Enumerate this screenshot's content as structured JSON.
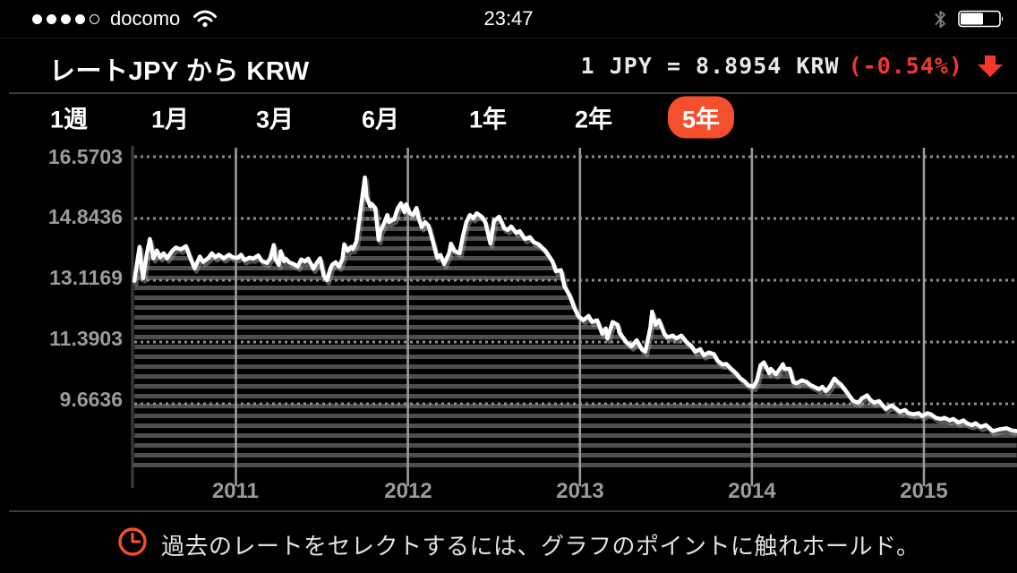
{
  "status_bar": {
    "carrier": "docomo",
    "time": "23:47",
    "signal_dots_filled": 4,
    "signal_dots_total": 5,
    "battery_percent_visual": 57
  },
  "header": {
    "title": "レートJPY から KRW",
    "rate_main": "1 JPY = 8.8954 KRW",
    "rate_change": "(-0.54%)",
    "direction": "down"
  },
  "tabs": {
    "items": [
      {
        "label": "1週",
        "selected": false
      },
      {
        "label": "1月",
        "selected": false
      },
      {
        "label": "3月",
        "selected": false
      },
      {
        "label": "6月",
        "selected": false
      },
      {
        "label": "1年",
        "selected": false
      },
      {
        "label": "2年",
        "selected": false
      },
      {
        "label": "5年",
        "selected": true
      }
    ]
  },
  "chart_data": {
    "type": "line",
    "title": "JPY to KRW exchange rate, 5 year history",
    "current_rate": 8.8954,
    "change_percent": -0.54,
    "x_tick_labels": [
      "2011",
      "2012",
      "2013",
      "2014",
      "2015"
    ],
    "x_tick_years": [
      2011,
      2012,
      2013,
      2014,
      2015
    ],
    "y_tick_labels": [
      "16.5703",
      "14.8436",
      "13.1169",
      "11.3903",
      "9.6636"
    ],
    "y_tick_values": [
      16.5703,
      14.8436,
      13.1169,
      11.3903,
      9.6636
    ],
    "x_range": [
      2010.41,
      2015.54
    ],
    "grid": "horizontal dotted at y ticks, vertical solid at years",
    "series": [
      {
        "name": "JPY/KRW",
        "points": [
          [
            2010.41,
            13.1
          ],
          [
            2010.43,
            13.75
          ],
          [
            2010.44,
            14.05
          ],
          [
            2010.45,
            13.55
          ],
          [
            2010.46,
            13.18
          ],
          [
            2010.48,
            13.8
          ],
          [
            2010.5,
            14.27
          ],
          [
            2010.52,
            13.73
          ],
          [
            2010.54,
            13.95
          ],
          [
            2010.56,
            13.76
          ],
          [
            2010.58,
            13.87
          ],
          [
            2010.6,
            13.73
          ],
          [
            2010.63,
            13.94
          ],
          [
            2010.65,
            14.03
          ],
          [
            2010.68,
            13.98
          ],
          [
            2010.71,
            14.07
          ],
          [
            2010.73,
            13.8
          ],
          [
            2010.75,
            13.56
          ],
          [
            2010.76,
            13.45
          ],
          [
            2010.79,
            13.78
          ],
          [
            2010.81,
            13.63
          ],
          [
            2010.84,
            13.74
          ],
          [
            2010.86,
            13.87
          ],
          [
            2010.88,
            13.76
          ],
          [
            2010.9,
            13.83
          ],
          [
            2010.93,
            13.73
          ],
          [
            2010.96,
            13.83
          ],
          [
            2010.98,
            13.76
          ],
          [
            2011.01,
            13.74
          ],
          [
            2011.03,
            13.83
          ],
          [
            2011.05,
            13.68
          ],
          [
            2011.08,
            13.75
          ],
          [
            2011.1,
            13.72
          ],
          [
            2011.13,
            13.81
          ],
          [
            2011.15,
            13.66
          ],
          [
            2011.18,
            13.6
          ],
          [
            2011.2,
            13.73
          ],
          [
            2011.22,
            14.1
          ],
          [
            2011.23,
            13.7
          ],
          [
            2011.25,
            13.55
          ],
          [
            2011.26,
            13.93
          ],
          [
            2011.28,
            13.65
          ],
          [
            2011.29,
            13.72
          ],
          [
            2011.31,
            13.62
          ],
          [
            2011.34,
            13.56
          ],
          [
            2011.36,
            13.5
          ],
          [
            2011.38,
            13.7
          ],
          [
            2011.4,
            13.64
          ],
          [
            2011.42,
            13.72
          ],
          [
            2011.45,
            13.44
          ],
          [
            2011.47,
            13.6
          ],
          [
            2011.49,
            13.73
          ],
          [
            2011.51,
            13.25
          ],
          [
            2011.53,
            13.12
          ],
          [
            2011.55,
            13.45
          ],
          [
            2011.56,
            13.55
          ],
          [
            2011.58,
            13.62
          ],
          [
            2011.6,
            13.5
          ],
          [
            2011.62,
            13.72
          ],
          [
            2011.63,
            14.12
          ],
          [
            2011.65,
            13.94
          ],
          [
            2011.67,
            14.05
          ],
          [
            2011.68,
            13.99
          ],
          [
            2011.7,
            14.19
          ],
          [
            2011.72,
            14.9
          ],
          [
            2011.75,
            15.99
          ],
          [
            2011.76,
            15.45
          ],
          [
            2011.78,
            15.19
          ],
          [
            2011.79,
            15.25
          ],
          [
            2011.81,
            15.14
          ],
          [
            2011.83,
            14.24
          ],
          [
            2011.84,
            14.5
          ],
          [
            2011.86,
            14.69
          ],
          [
            2011.88,
            14.94
          ],
          [
            2011.89,
            14.74
          ],
          [
            2011.91,
            14.8
          ],
          [
            2011.92,
            14.82
          ],
          [
            2011.94,
            15.12
          ],
          [
            2011.96,
            15.27
          ],
          [
            2011.98,
            15.02
          ],
          [
            2011.99,
            15.24
          ],
          [
            2012.01,
            15.0
          ],
          [
            2012.03,
            14.94
          ],
          [
            2012.05,
            15.14
          ],
          [
            2012.06,
            14.89
          ],
          [
            2012.08,
            14.6
          ],
          [
            2012.1,
            14.74
          ],
          [
            2012.12,
            14.64
          ],
          [
            2012.15,
            14.12
          ],
          [
            2012.17,
            13.75
          ],
          [
            2012.19,
            13.82
          ],
          [
            2012.21,
            13.57
          ],
          [
            2012.24,
            13.87
          ],
          [
            2012.25,
            14.14
          ],
          [
            2012.27,
            13.94
          ],
          [
            2012.3,
            13.87
          ],
          [
            2012.32,
            14.35
          ],
          [
            2012.34,
            14.74
          ],
          [
            2012.36,
            14.94
          ],
          [
            2012.38,
            14.85
          ],
          [
            2012.4,
            14.99
          ],
          [
            2012.43,
            14.89
          ],
          [
            2012.45,
            14.74
          ],
          [
            2012.48,
            14.14
          ],
          [
            2012.5,
            14.77
          ],
          [
            2012.53,
            14.89
          ],
          [
            2012.56,
            14.57
          ],
          [
            2012.58,
            14.52
          ],
          [
            2012.6,
            14.62
          ],
          [
            2012.63,
            14.44
          ],
          [
            2012.65,
            14.49
          ],
          [
            2012.68,
            14.27
          ],
          [
            2012.71,
            14.32
          ],
          [
            2012.73,
            14.19
          ],
          [
            2012.76,
            14.12
          ],
          [
            2012.8,
            13.94
          ],
          [
            2012.84,
            13.65
          ],
          [
            2012.86,
            13.37
          ],
          [
            2012.89,
            13.4
          ],
          [
            2012.91,
            12.95
          ],
          [
            2012.94,
            12.7
          ],
          [
            2012.97,
            12.32
          ],
          [
            2012.99,
            12.12
          ],
          [
            2013.02,
            12.0
          ],
          [
            2013.05,
            12.12
          ],
          [
            2013.07,
            11.95
          ],
          [
            2013.1,
            12.0
          ],
          [
            2013.13,
            11.62
          ],
          [
            2013.15,
            11.77
          ],
          [
            2013.16,
            11.49
          ],
          [
            2013.19,
            11.95
          ],
          [
            2013.22,
            11.87
          ],
          [
            2013.23,
            11.65
          ],
          [
            2013.27,
            11.39
          ],
          [
            2013.3,
            11.27
          ],
          [
            2013.33,
            11.44
          ],
          [
            2013.36,
            11.19
          ],
          [
            2013.38,
            11.12
          ],
          [
            2013.41,
            11.8
          ],
          [
            2013.42,
            12.24
          ],
          [
            2013.44,
            11.87
          ],
          [
            2013.46,
            12.0
          ],
          [
            2013.49,
            11.62
          ],
          [
            2013.51,
            11.52
          ],
          [
            2013.54,
            11.57
          ],
          [
            2013.56,
            11.49
          ],
          [
            2013.59,
            11.57
          ],
          [
            2013.62,
            11.39
          ],
          [
            2013.65,
            11.27
          ],
          [
            2013.67,
            11.12
          ],
          [
            2013.7,
            11.19
          ],
          [
            2013.72,
            11.02
          ],
          [
            2013.75,
            11.1
          ],
          [
            2013.78,
            11.05
          ],
          [
            2013.8,
            10.87
          ],
          [
            2013.83,
            10.76
          ],
          [
            2013.85,
            10.78
          ],
          [
            2013.88,
            10.64
          ],
          [
            2013.91,
            10.51
          ],
          [
            2013.93,
            10.39
          ],
          [
            2013.96,
            10.28
          ],
          [
            2013.98,
            10.18
          ],
          [
            2014.01,
            10.14
          ],
          [
            2014.03,
            10.32
          ],
          [
            2014.05,
            10.74
          ],
          [
            2014.07,
            10.82
          ],
          [
            2014.1,
            10.52
          ],
          [
            2014.11,
            10.64
          ],
          [
            2014.14,
            10.49
          ],
          [
            2014.16,
            10.62
          ],
          [
            2014.18,
            10.77
          ],
          [
            2014.19,
            10.64
          ],
          [
            2014.22,
            10.64
          ],
          [
            2014.24,
            10.27
          ],
          [
            2014.26,
            10.24
          ],
          [
            2014.29,
            10.32
          ],
          [
            2014.32,
            10.27
          ],
          [
            2014.34,
            10.19
          ],
          [
            2014.37,
            10.12
          ],
          [
            2014.39,
            10.07
          ],
          [
            2014.41,
            10.14
          ],
          [
            2014.43,
            10.02
          ],
          [
            2014.45,
            10.12
          ],
          [
            2014.48,
            10.37
          ],
          [
            2014.5,
            10.27
          ],
          [
            2014.52,
            10.19
          ],
          [
            2014.54,
            10.07
          ],
          [
            2014.57,
            9.87
          ],
          [
            2014.59,
            9.74
          ],
          [
            2014.62,
            9.7
          ],
          [
            2014.64,
            9.82
          ],
          [
            2014.67,
            9.9
          ],
          [
            2014.69,
            9.77
          ],
          [
            2014.71,
            9.7
          ],
          [
            2014.74,
            9.74
          ],
          [
            2014.76,
            9.62
          ],
          [
            2014.78,
            9.52
          ],
          [
            2014.81,
            9.62
          ],
          [
            2014.84,
            9.52
          ],
          [
            2014.86,
            9.44
          ],
          [
            2014.89,
            9.49
          ],
          [
            2014.91,
            9.4
          ],
          [
            2014.94,
            9.37
          ],
          [
            2014.97,
            9.4
          ],
          [
            2014.99,
            9.32
          ],
          [
            2015.02,
            9.4
          ],
          [
            2015.04,
            9.37
          ],
          [
            2015.07,
            9.27
          ],
          [
            2015.1,
            9.24
          ],
          [
            2015.12,
            9.27
          ],
          [
            2015.15,
            9.2
          ],
          [
            2015.17,
            9.24
          ],
          [
            2015.2,
            9.14
          ],
          [
            2015.23,
            9.2
          ],
          [
            2015.25,
            9.12
          ],
          [
            2015.28,
            9.07
          ],
          [
            2015.3,
            9.12
          ],
          [
            2015.33,
            9.02
          ],
          [
            2015.36,
            9.07
          ],
          [
            2015.38,
            8.99
          ],
          [
            2015.4,
            8.9
          ],
          [
            2015.44,
            8.95
          ],
          [
            2015.48,
            8.98
          ],
          [
            2015.51,
            8.92
          ],
          [
            2015.54,
            8.9
          ]
        ]
      }
    ]
  },
  "footer": {
    "hint": "過去のレートをセレクトするには、グラフのポイントに触れホールド。"
  },
  "colors": {
    "accent_orange": "#f4502e",
    "negative_red": "#f5382c",
    "line_white": "#ffffff",
    "stripe_gray": "#4e4e4e",
    "grid_gray": "#9b9b9b",
    "axis_label_gray": "#9b9b9b",
    "separator_gray": "#3a3a3a",
    "background": "#000000"
  }
}
